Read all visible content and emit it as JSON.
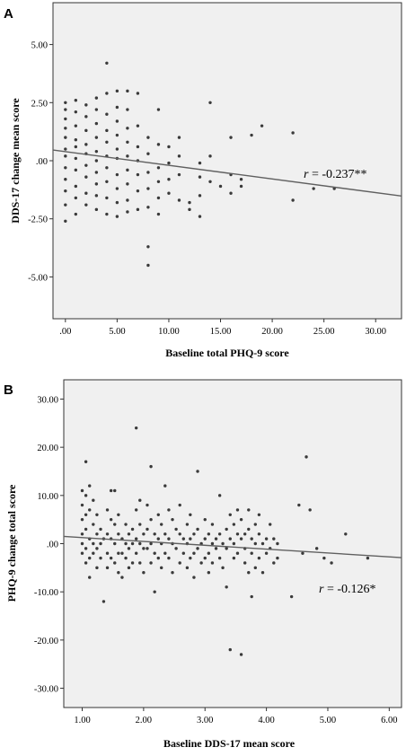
{
  "chart_data": [
    {
      "panel_label": "A",
      "type": "scatter",
      "xlabel": "Baseline total PHQ-9 score",
      "ylabel": "DDS-17 change mean score",
      "xlim": [
        -1.2,
        32.5
      ],
      "ylim": [
        -6.8,
        6.8
      ],
      "xticks": [
        0,
        5,
        10,
        15,
        20,
        25,
        30
      ],
      "xtick_labels": [
        ".00",
        "5.00",
        "10.00",
        "15.00",
        "20.00",
        "25.00",
        "30.00"
      ],
      "yticks": [
        5,
        2.5,
        0,
        -2.5,
        -5
      ],
      "ytick_labels": [
        "5.00",
        "2.50",
        ".00",
        "-2.50",
        "-5.00"
      ],
      "annotation": {
        "prefix": "r",
        "text": " = -0.237**"
      },
      "fit_line": {
        "x": [
          -1.2,
          32.5
        ],
        "y": [
          0.46,
          -1.52
        ]
      },
      "points": [
        [
          0,
          2.5
        ],
        [
          0,
          2.2
        ],
        [
          0,
          1.8
        ],
        [
          0,
          1.4
        ],
        [
          0,
          1.0
        ],
        [
          0,
          0.5
        ],
        [
          0,
          0.2
        ],
        [
          0,
          -0.3
        ],
        [
          0,
          -0.8
        ],
        [
          0,
          -1.3
        ],
        [
          0,
          -1.9
        ],
        [
          0,
          -2.6
        ],
        [
          1,
          2.6
        ],
        [
          1,
          2.1
        ],
        [
          1,
          1.5
        ],
        [
          1,
          0.9
        ],
        [
          1,
          0.6
        ],
        [
          1,
          0.1
        ],
        [
          1,
          -0.4
        ],
        [
          1,
          -1.1
        ],
        [
          1,
          -1.6
        ],
        [
          1,
          -2.3
        ],
        [
          2,
          2.4
        ],
        [
          2,
          1.9
        ],
        [
          2,
          1.3
        ],
        [
          2,
          0.7
        ],
        [
          2,
          0.3
        ],
        [
          2,
          -0.2
        ],
        [
          2,
          -0.7
        ],
        [
          2,
          -1.4
        ],
        [
          2,
          -1.9
        ],
        [
          3,
          2.7
        ],
        [
          3,
          2.2
        ],
        [
          3,
          1.6
        ],
        [
          3,
          1.0
        ],
        [
          3,
          0.4
        ],
        [
          3,
          0.0
        ],
        [
          3,
          -0.5
        ],
        [
          3,
          -1.0
        ],
        [
          3,
          -1.5
        ],
        [
          3,
          -2.1
        ],
        [
          4,
          2.9
        ],
        [
          4,
          2.0
        ],
        [
          4,
          1.3
        ],
        [
          4,
          0.8
        ],
        [
          4,
          0.2
        ],
        [
          4,
          -0.3
        ],
        [
          4,
          -0.9
        ],
        [
          4,
          -1.6
        ],
        [
          4,
          -2.3
        ],
        [
          4,
          4.2
        ],
        [
          5,
          3.0
        ],
        [
          5,
          2.3
        ],
        [
          5,
          1.7
        ],
        [
          5,
          1.1
        ],
        [
          5,
          0.5
        ],
        [
          5,
          0.1
        ],
        [
          5,
          -0.6
        ],
        [
          5,
          -1.2
        ],
        [
          5,
          -1.8
        ],
        [
          5,
          -2.4
        ],
        [
          6,
          3.0
        ],
        [
          6,
          2.2
        ],
        [
          6,
          1.4
        ],
        [
          6,
          0.8
        ],
        [
          6,
          0.2
        ],
        [
          6,
          -0.4
        ],
        [
          6,
          -1.0
        ],
        [
          6,
          -1.7
        ],
        [
          6,
          -2.2
        ],
        [
          7,
          2.9
        ],
        [
          7,
          1.5
        ],
        [
          7,
          0.6
        ],
        [
          7,
          0.0
        ],
        [
          7,
          -0.6
        ],
        [
          7,
          -1.3
        ],
        [
          7,
          -2.1
        ],
        [
          8,
          1.0
        ],
        [
          8,
          0.3
        ],
        [
          8,
          -0.5
        ],
        [
          8,
          -1.2
        ],
        [
          8,
          -2.0
        ],
        [
          8,
          -3.7
        ],
        [
          8,
          -4.5
        ],
        [
          9,
          2.2
        ],
        [
          9,
          0.7
        ],
        [
          9,
          -0.3
        ],
        [
          9,
          -0.9
        ],
        [
          9,
          -1.6
        ],
        [
          9,
          -2.3
        ],
        [
          10,
          0.6
        ],
        [
          10,
          -0.1
        ],
        [
          10,
          -0.8
        ],
        [
          10,
          -1.4
        ],
        [
          11,
          1.0
        ],
        [
          11,
          0.2
        ],
        [
          11,
          -0.6
        ],
        [
          11,
          -1.7
        ],
        [
          12,
          -1.8
        ],
        [
          12,
          -2.1
        ],
        [
          13,
          -0.1
        ],
        [
          13,
          -0.7
        ],
        [
          13,
          -1.5
        ],
        [
          13,
          -2.4
        ],
        [
          14,
          0.2
        ],
        [
          14,
          -0.9
        ],
        [
          14,
          2.5
        ],
        [
          15,
          -1.1
        ],
        [
          16,
          1.0
        ],
        [
          16,
          -0.6
        ],
        [
          16,
          -1.4
        ],
        [
          17,
          -0.8
        ],
        [
          17,
          -1.1
        ],
        [
          18,
          1.1
        ],
        [
          19,
          1.5
        ],
        [
          22,
          1.2
        ],
        [
          22,
          -1.7
        ],
        [
          24,
          -1.2
        ],
        [
          26,
          -1.2
        ]
      ]
    },
    {
      "panel_label": "B",
      "type": "scatter",
      "xlabel": "Baseline DDS-17 mean score",
      "ylabel": "PHQ-9 change total score",
      "xlim": [
        0.7,
        6.2
      ],
      "ylim": [
        -34,
        34
      ],
      "xticks": [
        1,
        2,
        3,
        4,
        5,
        6
      ],
      "xtick_labels": [
        "1.00",
        "2.00",
        "3.00",
        "4.00",
        "5.00",
        "6.00"
      ],
      "yticks": [
        30,
        20,
        10,
        0,
        -10,
        -20,
        -30
      ],
      "ytick_labels": [
        "30.00",
        "20.00",
        "10.00",
        ".00",
        "-10.00",
        "-20.00",
        "-30.00"
      ],
      "annotation": {
        "prefix": "r",
        "text": " = -0.126*"
      },
      "fit_line": {
        "x": [
          0.7,
          6.2
        ],
        "y": [
          1.5,
          -2.9
        ]
      },
      "points": [
        [
          1.0,
          11
        ],
        [
          1.0,
          8
        ],
        [
          1.0,
          5
        ],
        [
          1.0,
          2
        ],
        [
          1.0,
          0
        ],
        [
          1.0,
          -2
        ],
        [
          1.06,
          17
        ],
        [
          1.06,
          10
        ],
        [
          1.06,
          6
        ],
        [
          1.06,
          3
        ],
        [
          1.06,
          -1
        ],
        [
          1.06,
          -4
        ],
        [
          1.12,
          12
        ],
        [
          1.12,
          7
        ],
        [
          1.12,
          1
        ],
        [
          1.12,
          -3
        ],
        [
          1.12,
          -7
        ],
        [
          1.18,
          9
        ],
        [
          1.18,
          4
        ],
        [
          1.18,
          0
        ],
        [
          1.18,
          -2
        ],
        [
          1.24,
          6
        ],
        [
          1.24,
          2
        ],
        [
          1.24,
          -1
        ],
        [
          1.24,
          -5
        ],
        [
          1.3,
          3
        ],
        [
          1.3,
          0
        ],
        [
          1.3,
          -3
        ],
        [
          1.35,
          -12
        ],
        [
          1.35,
          1
        ],
        [
          1.41,
          7
        ],
        [
          1.41,
          2
        ],
        [
          1.41,
          -2
        ],
        [
          1.41,
          -5
        ],
        [
          1.47,
          11
        ],
        [
          1.47,
          5
        ],
        [
          1.47,
          1
        ],
        [
          1.47,
          -3
        ],
        [
          1.53,
          11
        ],
        [
          1.53,
          4
        ],
        [
          1.53,
          0
        ],
        [
          1.53,
          -4
        ],
        [
          1.59,
          6
        ],
        [
          1.59,
          2
        ],
        [
          1.59,
          -2
        ],
        [
          1.59,
          -6
        ],
        [
          1.65,
          1
        ],
        [
          1.65,
          -2
        ],
        [
          1.65,
          -7
        ],
        [
          1.71,
          4
        ],
        [
          1.71,
          0
        ],
        [
          1.71,
          -3
        ],
        [
          1.76,
          2
        ],
        [
          1.76,
          -1
        ],
        [
          1.76,
          -5
        ],
        [
          1.82,
          3
        ],
        [
          1.82,
          0
        ],
        [
          1.82,
          -4
        ],
        [
          1.88,
          24
        ],
        [
          1.88,
          7
        ],
        [
          1.88,
          1
        ],
        [
          1.88,
          -2
        ],
        [
          1.94,
          9
        ],
        [
          1.94,
          4
        ],
        [
          1.94,
          0
        ],
        [
          1.94,
          -4
        ],
        [
          2.0,
          2
        ],
        [
          2.0,
          -1
        ],
        [
          2.0,
          -6
        ],
        [
          2.06,
          8
        ],
        [
          2.06,
          3
        ],
        [
          2.06,
          -1
        ],
        [
          2.12,
          16
        ],
        [
          2.12,
          5
        ],
        [
          2.12,
          0
        ],
        [
          2.12,
          -4
        ],
        [
          2.18,
          2
        ],
        [
          2.18,
          -2
        ],
        [
          2.18,
          -10
        ],
        [
          2.24,
          6
        ],
        [
          2.24,
          1
        ],
        [
          2.24,
          -3
        ],
        [
          2.29,
          4
        ],
        [
          2.29,
          0
        ],
        [
          2.29,
          -5
        ],
        [
          2.35,
          12
        ],
        [
          2.35,
          2
        ],
        [
          2.35,
          -2
        ],
        [
          2.41,
          7
        ],
        [
          2.41,
          1
        ],
        [
          2.41,
          -3
        ],
        [
          2.47,
          5
        ],
        [
          2.47,
          0
        ],
        [
          2.47,
          -6
        ],
        [
          2.53,
          3
        ],
        [
          2.53,
          -1
        ],
        [
          2.59,
          8
        ],
        [
          2.59,
          2
        ],
        [
          2.59,
          -4
        ],
        [
          2.65,
          1
        ],
        [
          2.65,
          -2
        ],
        [
          2.71,
          4
        ],
        [
          2.71,
          0
        ],
        [
          2.71,
          -5
        ],
        [
          2.76,
          6
        ],
        [
          2.76,
          1
        ],
        [
          2.76,
          -3
        ],
        [
          2.82,
          2
        ],
        [
          2.82,
          -2
        ],
        [
          2.82,
          -7
        ],
        [
          2.88,
          15
        ],
        [
          2.88,
          3
        ],
        [
          2.88,
          -1
        ],
        [
          2.94,
          0
        ],
        [
          2.94,
          -4
        ],
        [
          3.0,
          5
        ],
        [
          3.0,
          1
        ],
        [
          3.0,
          -3
        ],
        [
          3.06,
          2
        ],
        [
          3.06,
          -2
        ],
        [
          3.06,
          -6
        ],
        [
          3.12,
          4
        ],
        [
          3.12,
          0
        ],
        [
          3.12,
          -4
        ],
        [
          3.18,
          1
        ],
        [
          3.18,
          -1
        ],
        [
          3.24,
          10
        ],
        [
          3.24,
          2
        ],
        [
          3.24,
          -3
        ],
        [
          3.29,
          0
        ],
        [
          3.29,
          -5
        ],
        [
          3.35,
          3
        ],
        [
          3.35,
          -1
        ],
        [
          3.35,
          -9
        ],
        [
          3.41,
          6
        ],
        [
          3.41,
          1
        ],
        [
          3.41,
          -22
        ],
        [
          3.47,
          4
        ],
        [
          3.47,
          0
        ],
        [
          3.47,
          -3
        ],
        [
          3.53,
          7
        ],
        [
          3.53,
          2
        ],
        [
          3.53,
          -2
        ],
        [
          3.59,
          5
        ],
        [
          3.59,
          1
        ],
        [
          3.59,
          -23
        ],
        [
          3.65,
          2
        ],
        [
          3.65,
          -1
        ],
        [
          3.65,
          -4
        ],
        [
          3.71,
          7
        ],
        [
          3.71,
          3
        ],
        [
          3.71,
          -6
        ],
        [
          3.76,
          1
        ],
        [
          3.76,
          -2
        ],
        [
          3.76,
          -11
        ],
        [
          3.82,
          4
        ],
        [
          3.82,
          0
        ],
        [
          3.82,
          -5
        ],
        [
          3.88,
          6
        ],
        [
          3.88,
          2
        ],
        [
          3.88,
          -3
        ],
        [
          3.94,
          0
        ],
        [
          3.94,
          -6
        ],
        [
          4.0,
          1
        ],
        [
          4.0,
          -2
        ],
        [
          4.06,
          4
        ],
        [
          4.06,
          -1
        ],
        [
          4.12,
          1
        ],
        [
          4.12,
          -4
        ],
        [
          4.18,
          0
        ],
        [
          4.18,
          -3
        ],
        [
          4.41,
          -11
        ],
        [
          4.53,
          8
        ],
        [
          4.59,
          -2
        ],
        [
          4.65,
          18
        ],
        [
          4.71,
          7
        ],
        [
          4.82,
          -1
        ],
        [
          4.94,
          -3
        ],
        [
          5.06,
          -4
        ],
        [
          5.29,
          2
        ],
        [
          5.65,
          -3
        ]
      ]
    }
  ]
}
